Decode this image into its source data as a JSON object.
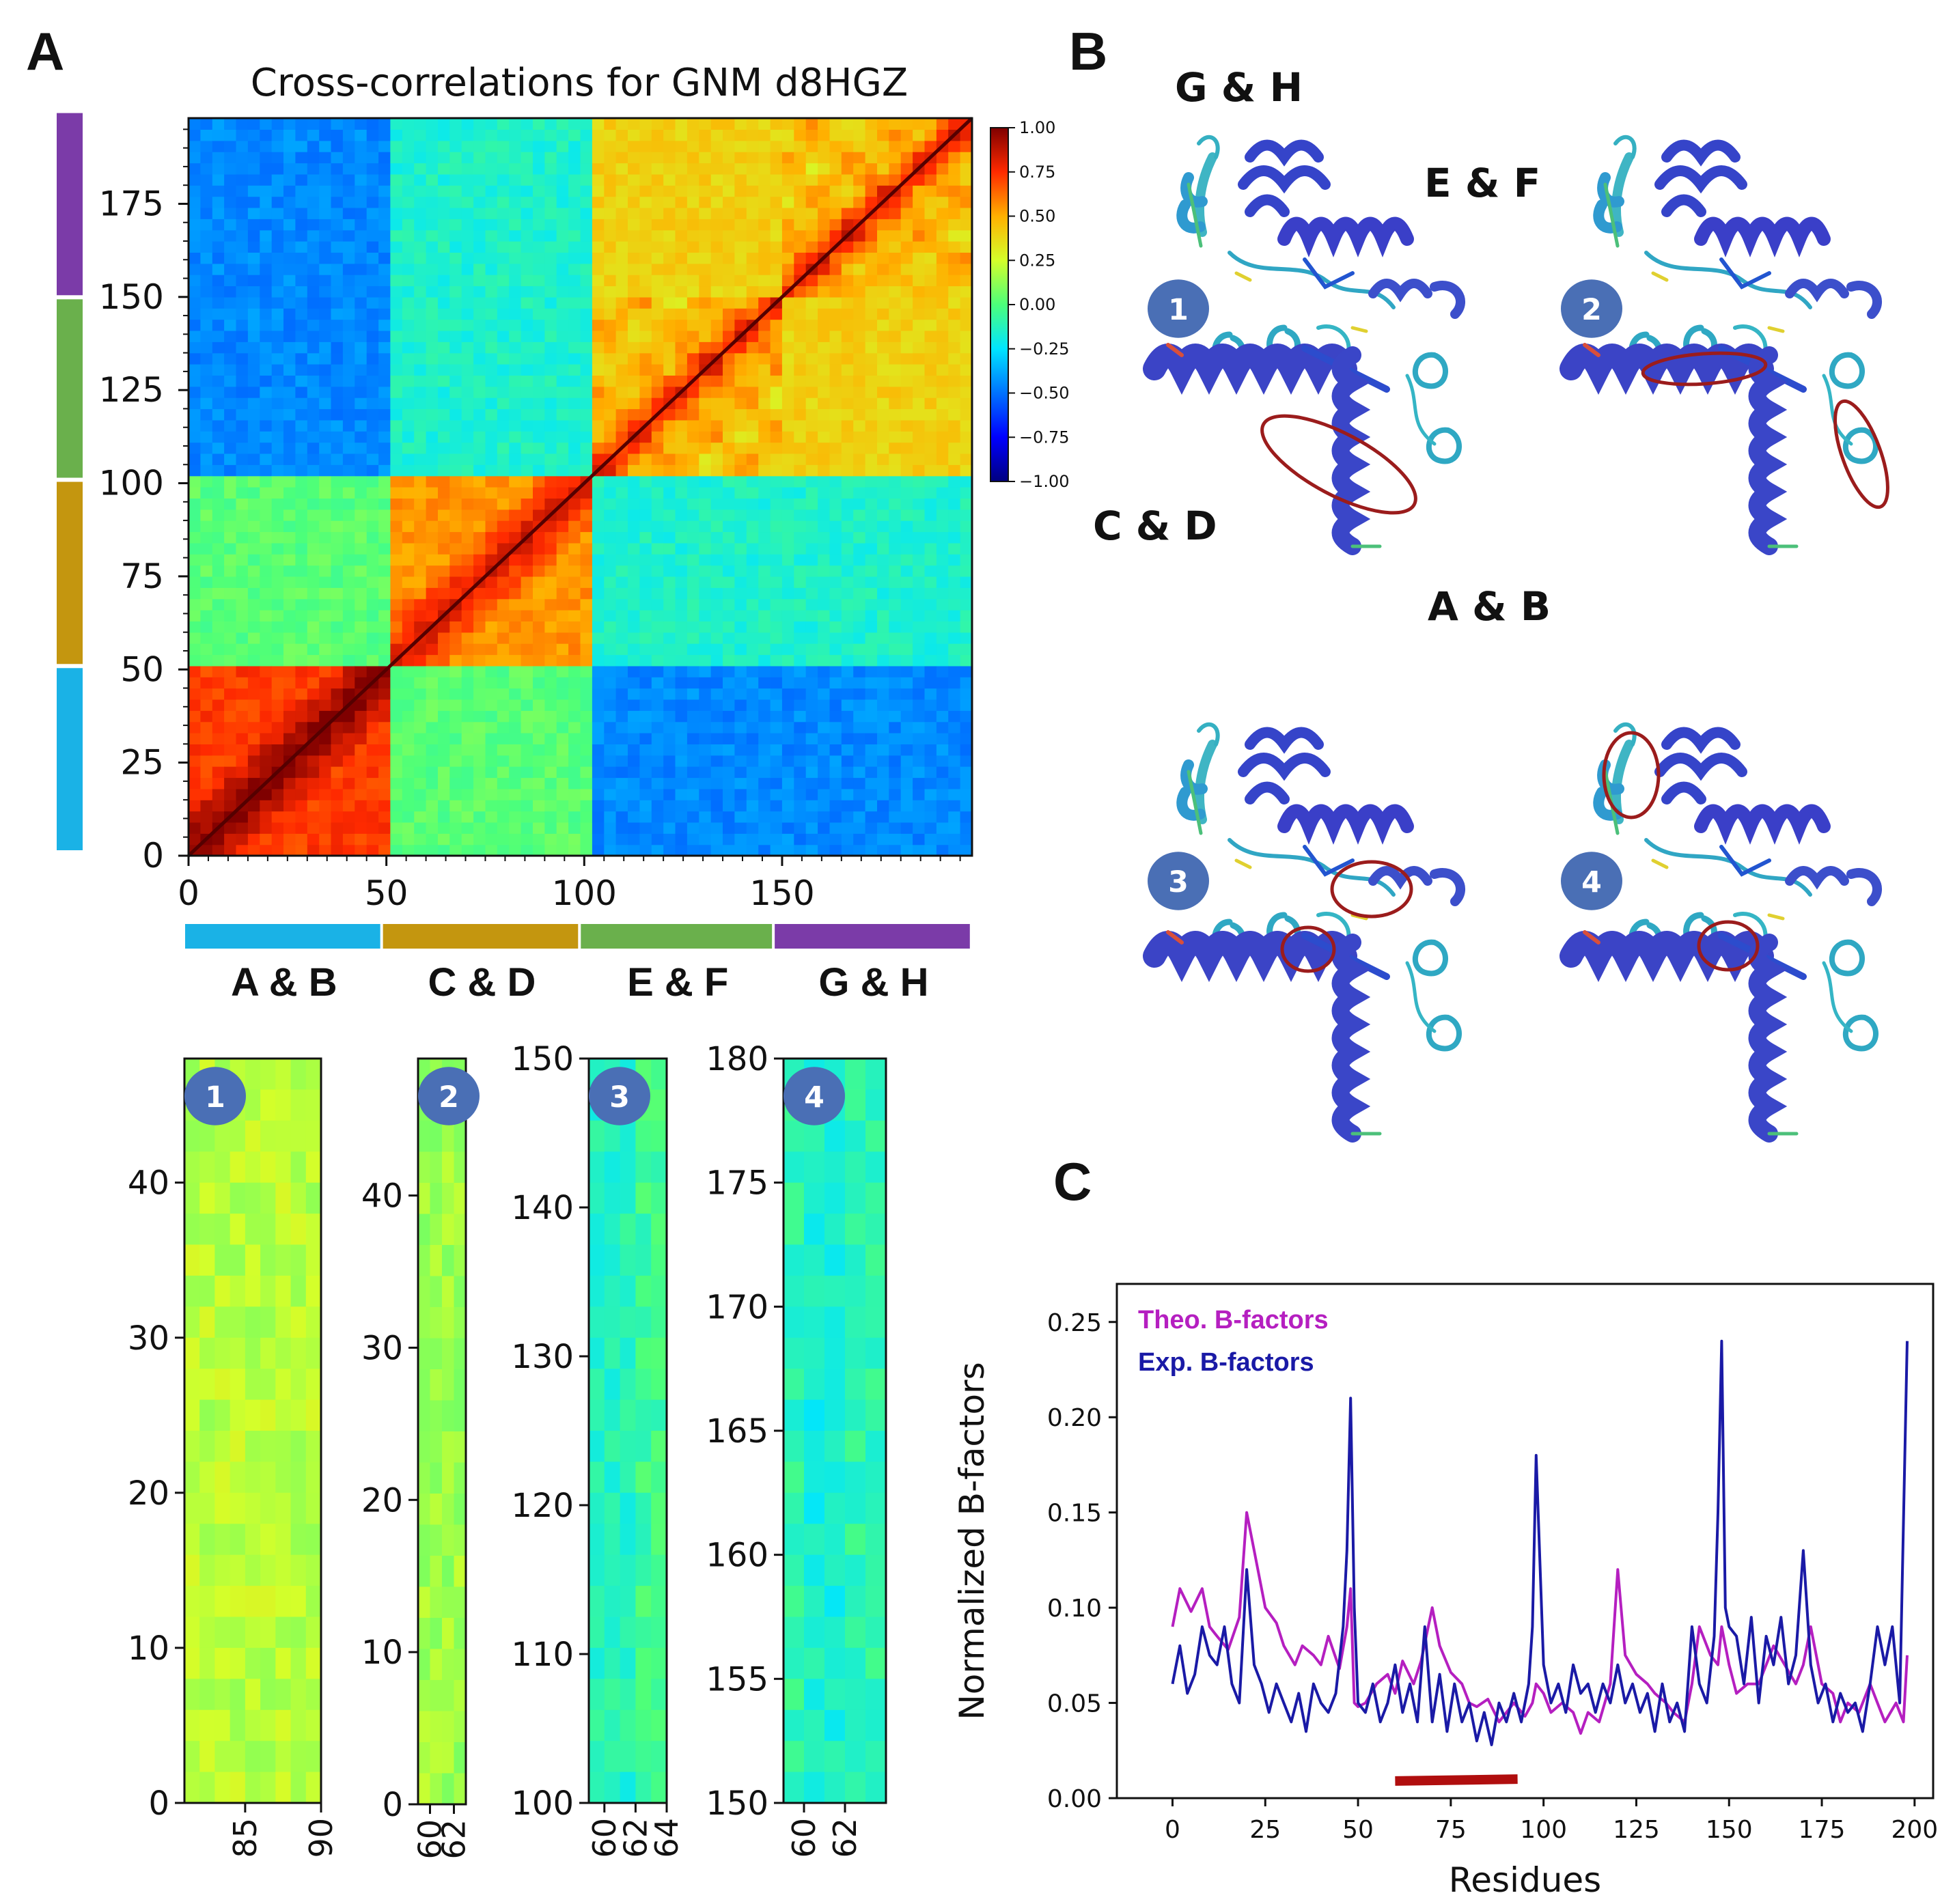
{
  "panel_labels": {
    "a": "A",
    "b": "B",
    "c": "C"
  },
  "colors": {
    "ab": "#1ab2e6",
    "cd": "#c4960f",
    "ef": "#6ab04c",
    "gh": "#7b3ba8",
    "theo": "#b51fc0",
    "exp": "#1a1aa6",
    "oval": "#9b1c1c",
    "bar": "#b00e0e"
  },
  "chart_data": [
    {
      "type": "heatmap",
      "title": "Cross-correlations for GNM d8HGZ",
      "x_range": [
        0,
        198
      ],
      "y_range": [
        0,
        198
      ],
      "x_ticks": [
        "0",
        "50",
        "100",
        "150"
      ],
      "y_ticks": [
        "0",
        "25",
        "50",
        "75",
        "100",
        "125",
        "150",
        "175"
      ],
      "domains": [
        {
          "name": "A & B",
          "start": 0,
          "end": 49
        },
        {
          "name": "C & D",
          "start": 50,
          "end": 99
        },
        {
          "name": "E & F",
          "start": 100,
          "end": 148
        },
        {
          "name": "G & H",
          "start": 149,
          "end": 198
        }
      ],
      "block_correlation_matrix": [
        [
          0.72,
          0.02,
          -0.45,
          -0.45
        ],
        [
          0.02,
          0.55,
          -0.15,
          -0.15
        ],
        [
          -0.45,
          -0.15,
          0.45,
          0.4
        ],
        [
          -0.45,
          -0.15,
          0.4,
          0.45
        ]
      ],
      "colorbar": {
        "min": -1.0,
        "max": 1.0,
        "ticks": [
          "1.00",
          "0.75",
          "0.50",
          "0.25",
          "0.00",
          "−0.25",
          "−0.50",
          "−0.75",
          "−1.00"
        ]
      }
    },
    {
      "type": "heatmap",
      "name": "zoom-1",
      "badge": "1",
      "x_range": [
        81,
        90
      ],
      "y_range": [
        0,
        48
      ],
      "x_ticks": [
        "85",
        "90"
      ],
      "y_ticks": [
        "0",
        "10",
        "20",
        "30",
        "40"
      ],
      "approx_value": 0.2
    },
    {
      "type": "heatmap",
      "name": "zoom-2",
      "badge": "2",
      "x_range": [
        59,
        63
      ],
      "y_range": [
        0,
        49
      ],
      "x_ticks": [
        "60",
        "62"
      ],
      "y_ticks": [
        "0",
        "10",
        "20",
        "30",
        "40"
      ],
      "approx_value": 0.15
    },
    {
      "type": "heatmap",
      "name": "zoom-3",
      "badge": "3",
      "x_range": [
        59,
        64
      ],
      "y_range": [
        100,
        150
      ],
      "x_ticks": [
        "60",
        "62",
        "64"
      ],
      "y_ticks": [
        "100",
        "110",
        "120",
        "130",
        "140",
        "150"
      ],
      "approx_value": -0.05
    },
    {
      "type": "heatmap",
      "name": "zoom-4",
      "badge": "4",
      "x_range": [
        59,
        64
      ],
      "y_range": [
        150,
        180
      ],
      "x_ticks": [
        "60",
        "62"
      ],
      "y_ticks": [
        "150",
        "155",
        "160",
        "165",
        "170",
        "175",
        "180"
      ],
      "approx_value": -0.1
    },
    {
      "type": "line",
      "xlabel": "Residues",
      "ylabel": "Normalized B-factors",
      "xlim": [
        -15,
        205
      ],
      "ylim": [
        0.0,
        0.27
      ],
      "x_ticks": [
        "0",
        "25",
        "50",
        "75",
        "100",
        "125",
        "150",
        "175",
        "200"
      ],
      "y_ticks": [
        "0.00",
        "0.05",
        "0.10",
        "0.15",
        "0.20",
        "0.25"
      ],
      "highlight_range": [
        60,
        93
      ],
      "series": [
        {
          "name": "Theo. B-factors",
          "x": [
            0,
            2,
            5,
            8,
            10,
            12,
            15,
            18,
            20,
            22,
            25,
            28,
            30,
            33,
            35,
            38,
            40,
            42,
            45,
            47,
            48,
            49,
            50,
            52,
            55,
            58,
            60,
            62,
            65,
            67,
            70,
            72,
            75,
            78,
            80,
            82,
            85,
            88,
            90,
            92,
            95,
            97,
            98,
            100,
            102,
            105,
            108,
            110,
            112,
            115,
            118,
            120,
            122,
            125,
            128,
            130,
            133,
            135,
            138,
            140,
            142,
            145,
            147,
            148,
            150,
            152,
            155,
            158,
            160,
            162,
            165,
            168,
            170,
            172,
            175,
            178,
            180,
            182,
            185,
            188,
            190,
            192,
            195,
            197,
            198
          ],
          "y": [
            0.09,
            0.11,
            0.098,
            0.11,
            0.09,
            0.085,
            0.078,
            0.095,
            0.15,
            0.13,
            0.1,
            0.092,
            0.08,
            0.07,
            0.08,
            0.075,
            0.07,
            0.085,
            0.068,
            0.09,
            0.11,
            0.05,
            0.048,
            0.05,
            0.06,
            0.065,
            0.055,
            0.072,
            0.06,
            0.072,
            0.1,
            0.08,
            0.066,
            0.06,
            0.05,
            0.048,
            0.052,
            0.04,
            0.045,
            0.05,
            0.043,
            0.05,
            0.06,
            0.055,
            0.045,
            0.05,
            0.045,
            0.034,
            0.045,
            0.04,
            0.06,
            0.12,
            0.075,
            0.065,
            0.06,
            0.055,
            0.05,
            0.045,
            0.04,
            0.06,
            0.09,
            0.075,
            0.07,
            0.09,
            0.07,
            0.055,
            0.06,
            0.06,
            0.07,
            0.08,
            0.07,
            0.06,
            0.07,
            0.09,
            0.06,
            0.055,
            0.04,
            0.05,
            0.045,
            0.06,
            0.05,
            0.04,
            0.05,
            0.04,
            0.075
          ]
        },
        {
          "name": "Exp. B-factors",
          "x": [
            0,
            2,
            4,
            6,
            8,
            10,
            12,
            14,
            16,
            18,
            20,
            22,
            24,
            26,
            28,
            30,
            32,
            34,
            36,
            38,
            40,
            42,
            44,
            46,
            47,
            48,
            49,
            50,
            52,
            54,
            56,
            58,
            60,
            62,
            64,
            66,
            68,
            70,
            72,
            74,
            76,
            78,
            80,
            82,
            84,
            86,
            88,
            90,
            92,
            94,
            96,
            97,
            98,
            100,
            102,
            104,
            106,
            108,
            110,
            112,
            114,
            116,
            118,
            120,
            122,
            124,
            126,
            128,
            130,
            132,
            134,
            136,
            138,
            140,
            142,
            144,
            146,
            147,
            148,
            149,
            150,
            152,
            154,
            156,
            158,
            160,
            162,
            164,
            166,
            168,
            170,
            172,
            174,
            176,
            178,
            180,
            182,
            184,
            186,
            188,
            190,
            192,
            194,
            196,
            198
          ],
          "y": [
            0.06,
            0.08,
            0.055,
            0.065,
            0.09,
            0.075,
            0.07,
            0.09,
            0.06,
            0.05,
            0.12,
            0.07,
            0.06,
            0.045,
            0.06,
            0.05,
            0.04,
            0.055,
            0.035,
            0.06,
            0.05,
            0.045,
            0.055,
            0.09,
            0.13,
            0.21,
            0.1,
            0.05,
            0.045,
            0.06,
            0.04,
            0.05,
            0.07,
            0.045,
            0.06,
            0.04,
            0.09,
            0.04,
            0.065,
            0.035,
            0.06,
            0.04,
            0.05,
            0.03,
            0.045,
            0.028,
            0.05,
            0.04,
            0.055,
            0.04,
            0.06,
            0.09,
            0.18,
            0.07,
            0.05,
            0.06,
            0.045,
            0.07,
            0.055,
            0.06,
            0.045,
            0.06,
            0.05,
            0.07,
            0.05,
            0.06,
            0.045,
            0.055,
            0.035,
            0.06,
            0.04,
            0.05,
            0.035,
            0.09,
            0.06,
            0.05,
            0.085,
            0.15,
            0.24,
            0.1,
            0.09,
            0.085,
            0.06,
            0.095,
            0.05,
            0.085,
            0.07,
            0.095,
            0.06,
            0.075,
            0.13,
            0.07,
            0.05,
            0.06,
            0.04,
            0.055,
            0.045,
            0.05,
            0.035,
            0.06,
            0.09,
            0.07,
            0.09,
            0.05,
            0.24
          ]
        }
      ]
    }
  ],
  "structure_panel": {
    "domain_labels": {
      "gh": "G & H",
      "ef": "E & F",
      "cd": "C & D",
      "ab": "A & B"
    },
    "badges": [
      "1",
      "2",
      "3",
      "4"
    ]
  }
}
